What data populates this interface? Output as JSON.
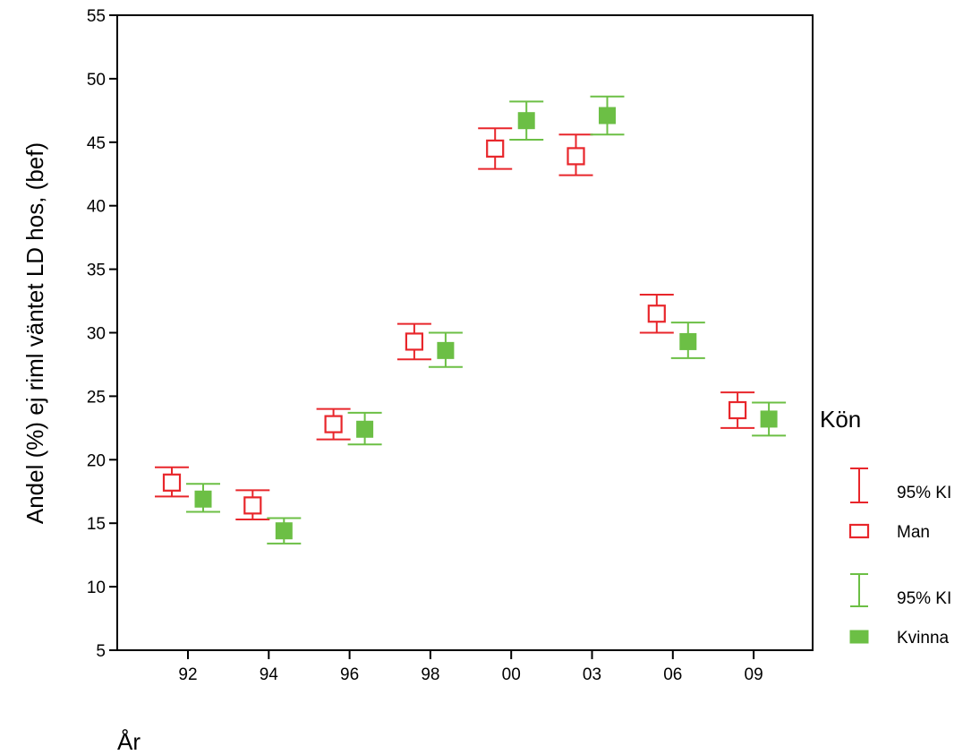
{
  "chart_data": {
    "type": "errorbar",
    "xlabel": "År",
    "ylabel": "Andel (%) ej riml väntet LD hos, (bef)",
    "ylim": [
      5,
      55
    ],
    "yticks": [
      5,
      10,
      15,
      20,
      25,
      30,
      35,
      40,
      45,
      50,
      55
    ],
    "categories": [
      "92",
      "94",
      "96",
      "98",
      "00",
      "03",
      "06",
      "09"
    ],
    "legend_title": "Kön",
    "legend_position": "right",
    "series": [
      {
        "name": "Man",
        "ci_label": "95% KI",
        "color": "#e8262b",
        "marker": "open-square",
        "values": [
          18.2,
          16.4,
          22.8,
          29.3,
          44.5,
          43.9,
          31.5,
          23.9
        ],
        "lower": [
          17.1,
          15.3,
          21.6,
          27.9,
          42.9,
          42.4,
          30.0,
          22.5
        ],
        "upper": [
          19.4,
          17.6,
          24.0,
          30.7,
          46.1,
          45.6,
          33.0,
          25.3
        ]
      },
      {
        "name": "Kvinna",
        "ci_label": "95% KI",
        "color": "#6cbf45",
        "marker": "filled-square",
        "values": [
          16.9,
          14.4,
          22.4,
          28.6,
          46.7,
          47.1,
          29.3,
          23.2
        ],
        "lower": [
          15.9,
          13.4,
          21.2,
          27.3,
          45.2,
          45.6,
          28.0,
          21.9
        ],
        "upper": [
          18.1,
          15.4,
          23.7,
          30.0,
          48.2,
          48.6,
          30.8,
          24.5
        ]
      }
    ]
  }
}
